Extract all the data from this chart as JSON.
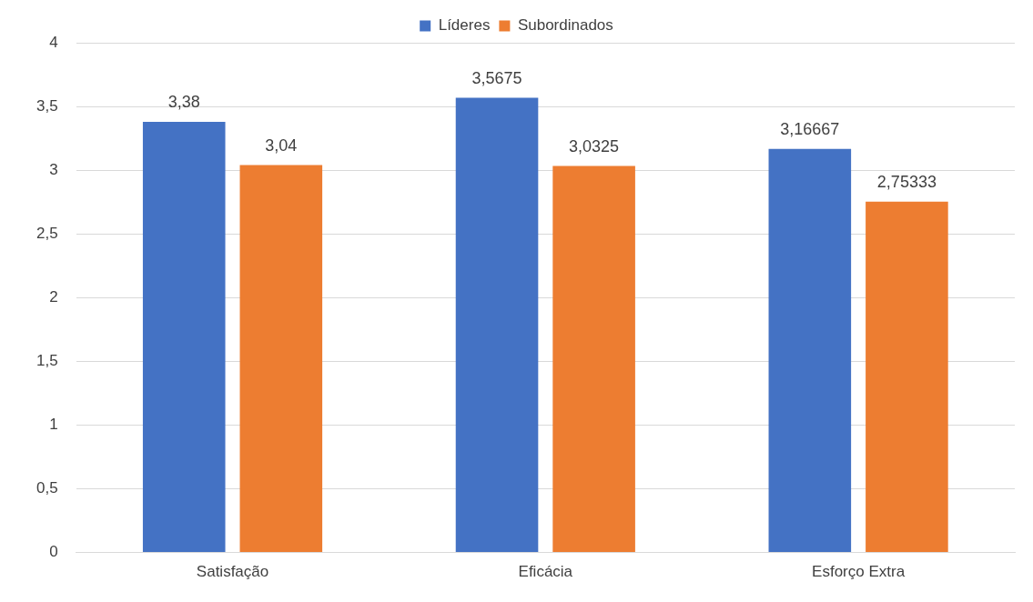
{
  "chart_data": {
    "type": "bar",
    "categories": [
      "Satisfação",
      "Eficácia",
      "Esforço Extra"
    ],
    "series": [
      {
        "name": "Líderes",
        "color": "#4472c4",
        "values": [
          3.38,
          3.5675,
          3.16667
        ],
        "value_labels": [
          "3,38",
          "3,5675",
          "3,16667"
        ]
      },
      {
        "name": "Subordinados",
        "color": "#ed7d31",
        "values": [
          3.04,
          3.0325,
          2.75333
        ],
        "value_labels": [
          "3,04",
          "3,0325",
          "2,75333"
        ]
      }
    ],
    "ylim": [
      0,
      4
    ],
    "yticks": [
      0,
      {
        "value": 0.5,
        "label": "0,5"
      },
      1,
      {
        "value": 1.5,
        "label": "1,5"
      },
      2,
      {
        "value": 2.5,
        "label": "2,5"
      },
      3,
      {
        "value": 3.5,
        "label": "3,5"
      },
      4
    ],
    "grid": "y",
    "legend": "top"
  }
}
